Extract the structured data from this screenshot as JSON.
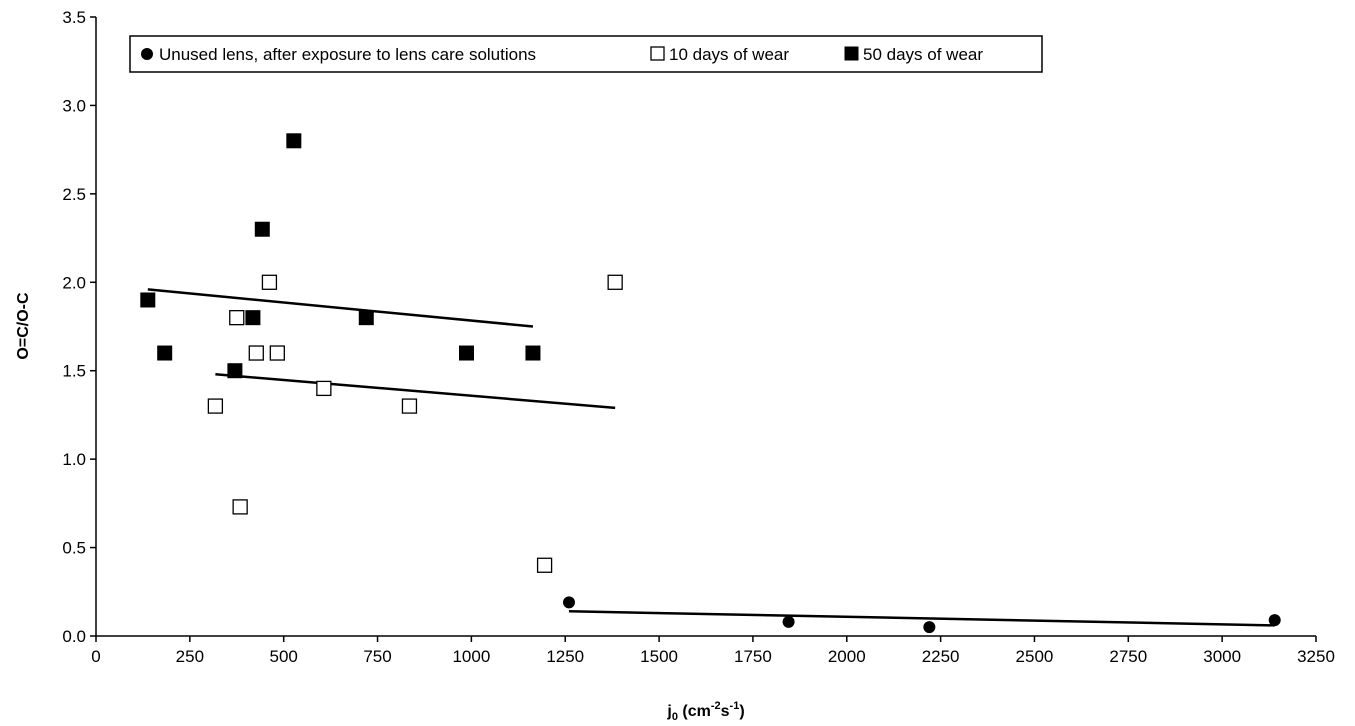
{
  "chart_data": {
    "type": "scatter",
    "title": "",
    "xlabel": {
      "base": "j",
      "base_sub": "0",
      "open": " (cm",
      "exp1": "-2",
      "mid": "s",
      "exp2": "-1",
      "close": ")"
    },
    "ylabel": "O=C/O-C",
    "xlim": [
      0,
      3250
    ],
    "ylim": [
      0,
      3.5
    ],
    "x_ticks": [
      0,
      250,
      500,
      750,
      1000,
      1250,
      1500,
      1750,
      2000,
      2250,
      2500,
      2750,
      3000,
      3250
    ],
    "x_tick_labels": [
      "0",
      "250",
      "500",
      "750",
      "1000",
      "1250",
      "1500",
      "1750",
      "2000",
      "2250",
      "2500",
      "2750",
      "3000",
      "3250"
    ],
    "y_ticks": [
      0,
      0.5,
      1.0,
      1.5,
      2.0,
      2.5,
      3.0,
      3.5
    ],
    "y_tick_labels": [
      "0.0",
      "0.5",
      "1.0",
      "1.5",
      "2.0",
      "2.5",
      "3.0",
      "3.5"
    ],
    "grid": false,
    "legend_position": "top-left",
    "series": [
      {
        "name": "Unused lens, after exposure to lens care solutions",
        "marker": "circle",
        "color": "#000000",
        "points": [
          [
            1260,
            0.19
          ],
          [
            1845,
            0.08
          ],
          [
            2220,
            0.05
          ],
          [
            3140,
            0.09
          ]
        ],
        "trendline": [
          [
            1260,
            0.14
          ],
          [
            3140,
            0.06
          ]
        ]
      },
      {
        "name": "10 days of wear",
        "marker": "square-open",
        "color": "#000000",
        "points": [
          [
            318,
            1.3
          ],
          [
            375,
            1.8
          ],
          [
            384,
            0.73
          ],
          [
            427,
            1.6
          ],
          [
            462,
            2.0
          ],
          [
            483,
            1.6
          ],
          [
            607,
            1.4
          ],
          [
            835,
            1.3
          ],
          [
            1195,
            0.4
          ],
          [
            1383,
            2.0
          ]
        ],
        "trendline": [
          [
            318,
            1.48
          ],
          [
            1383,
            1.29
          ]
        ]
      },
      {
        "name": "50 days of wear",
        "marker": "square-filled",
        "color": "#000000",
        "points": [
          [
            138,
            1.9
          ],
          [
            183,
            1.6
          ],
          [
            370,
            1.5
          ],
          [
            418,
            1.8
          ],
          [
            443,
            2.3
          ],
          [
            527,
            2.8
          ],
          [
            720,
            1.8
          ],
          [
            987,
            1.6
          ],
          [
            1164,
            1.6
          ]
        ],
        "trendline": [
          [
            138,
            1.96
          ],
          [
            1164,
            1.75
          ]
        ]
      }
    ]
  }
}
